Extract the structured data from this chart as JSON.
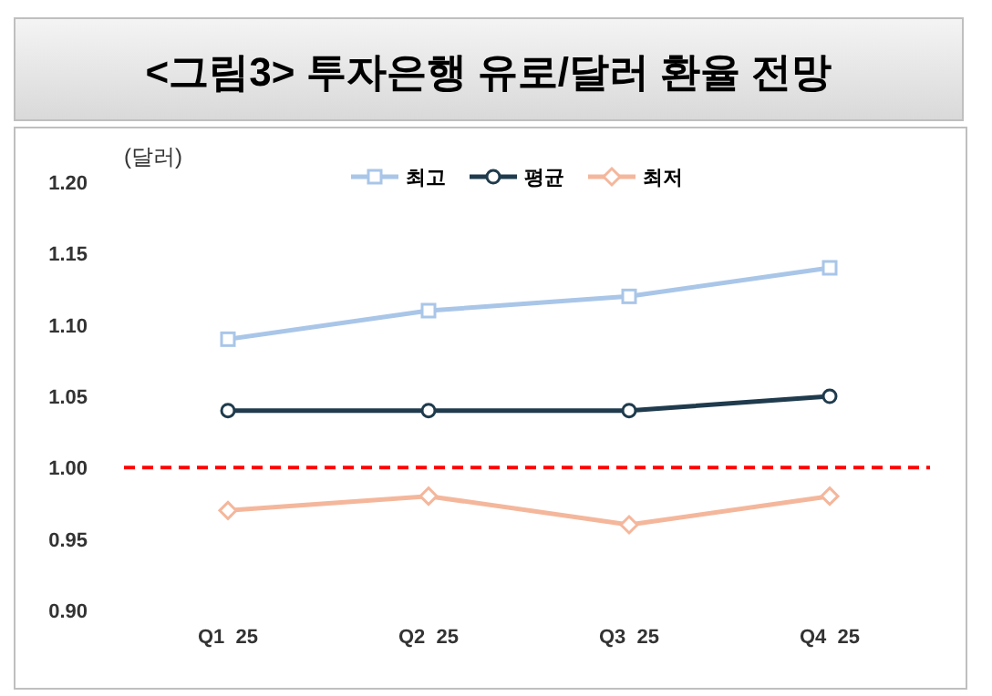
{
  "chart_data": {
    "type": "line",
    "title": "<그림3> 투자은행 유로/달러 환율 전망",
    "ylabel": "(달러)",
    "categories": [
      "Q1  25",
      "Q2  25",
      "Q3  25",
      "Q4  25"
    ],
    "series": [
      {
        "name": "최고",
        "color": "#a9c6e8",
        "marker": "square",
        "values": [
          1.09,
          1.11,
          1.12,
          1.14
        ]
      },
      {
        "name": "평균",
        "color": "#1f3b4d",
        "marker": "circle",
        "values": [
          1.04,
          1.04,
          1.04,
          1.05
        ]
      },
      {
        "name": "최저",
        "color": "#f4b79c",
        "marker": "diamond",
        "values": [
          0.97,
          0.98,
          0.96,
          0.98
        ]
      }
    ],
    "ylim": [
      0.9,
      1.2
    ],
    "yticks": [
      {
        "value": 0.9,
        "label": "0.90"
      },
      {
        "value": 0.95,
        "label": "0.95"
      },
      {
        "value": 1.0,
        "label": "1.00"
      },
      {
        "value": 1.05,
        "label": "1.05"
      },
      {
        "value": 1.1,
        "label": "1.10"
      },
      {
        "value": 1.15,
        "label": "1.15"
      },
      {
        "value": 1.2,
        "label": "1.20"
      }
    ],
    "ref_lines": [
      {
        "axis": "y",
        "value": 1.0,
        "color": "#ff0000",
        "line_style": "dashed"
      }
    ],
    "grid": false,
    "legend": "top",
    "line_style": "solid"
  }
}
